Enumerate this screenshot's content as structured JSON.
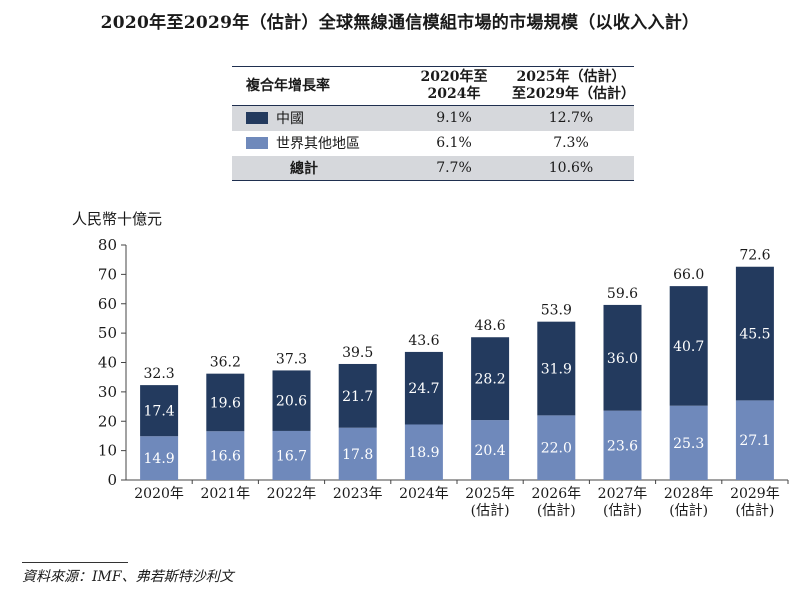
{
  "title": "2020年至2029年（估計）全球無線通信模組市場的市場規模（以收入入計）",
  "table": {
    "headers": [
      "複合年增長率",
      "2020年至\n2024年",
      "2025年（估計）\n至2029年（估計）"
    ],
    "rows": [
      {
        "label": "中國",
        "swatch": "#233a5e",
        "c1": "9.1%",
        "c2": "12.7%"
      },
      {
        "label": "世界其他地區",
        "swatch": "#6f89bb",
        "c1": "6.1%",
        "c2": "7.3%"
      },
      {
        "label": "總計",
        "swatch": "",
        "c1": "7.7%",
        "c2": "10.6%"
      }
    ]
  },
  "source": "資料來源：IMF、弗若斯特沙利文",
  "chart_data": {
    "type": "bar",
    "stacked": true,
    "ylabel": "人民幣十億元",
    "ylim": [
      0,
      80
    ],
    "yticks": [
      "0",
      "10",
      "20",
      "30",
      "40",
      "50",
      "60",
      "70",
      "80"
    ],
    "categories": [
      "2020年",
      "2021年",
      "2022年",
      "2023年",
      "2024年",
      "2025年\n(估計)",
      "2026年\n(估計)",
      "2027年\n(估計)",
      "2028年\n(估計)",
      "2029年\n(估計)"
    ],
    "series": [
      {
        "name": "世界其他地區",
        "color": "#6f89bb",
        "values": [
          14.9,
          16.6,
          16.7,
          17.8,
          18.9,
          20.4,
          22.0,
          23.6,
          25.3,
          27.1
        ],
        "labels": [
          "14.9",
          "16.6",
          "16.7",
          "17.8",
          "18.9",
          "20.4",
          "22.0",
          "23.6",
          "25.3",
          "27.1"
        ]
      },
      {
        "name": "中國",
        "color": "#233a5e",
        "values": [
          17.4,
          19.6,
          20.6,
          21.7,
          24.7,
          28.2,
          31.9,
          36.0,
          40.7,
          45.5
        ],
        "labels": [
          "17.4",
          "19.6",
          "20.6",
          "21.7",
          "24.7",
          "28.2",
          "31.9",
          "36.0",
          "40.7",
          "45.5"
        ]
      }
    ],
    "totals": [
      "32.3",
      "36.2",
      "37.3",
      "39.5",
      "43.6",
      "48.6",
      "53.9",
      "59.6",
      "66.0",
      "72.6"
    ]
  }
}
